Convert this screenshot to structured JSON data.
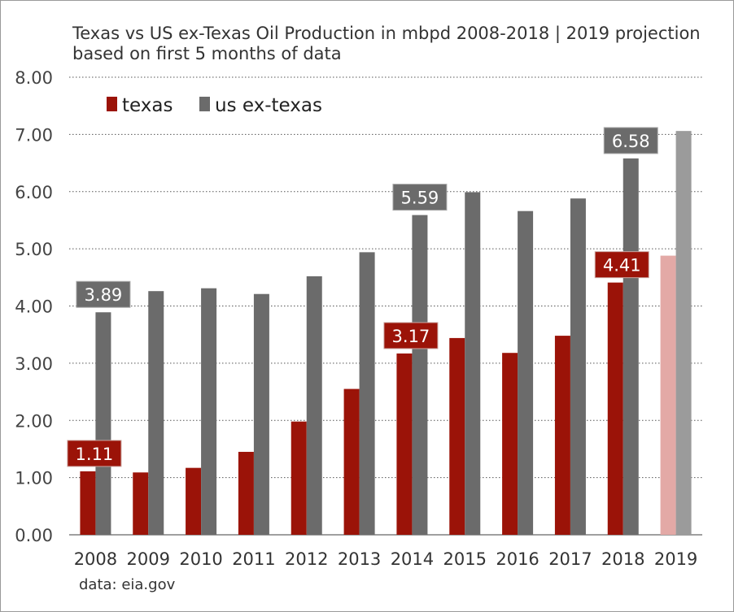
{
  "title": "Texas vs US ex-Texas Oil Production in mbpd 2008-2018 | 2019 projection based on first 5 months of data",
  "source": "data: eia.gov",
  "chart_data": {
    "type": "bar",
    "title": "Texas vs US ex-Texas Oil Production in mbpd 2008-2018 | 2019 projection based on first 5 months of data",
    "xlabel": "",
    "ylabel": "",
    "ylim": [
      0,
      8
    ],
    "yticks": [
      "0.00",
      "1.00",
      "2.00",
      "3.00",
      "4.00",
      "5.00",
      "6.00",
      "7.00",
      "8.00"
    ],
    "grid": "horizontal dotted",
    "legend_position": "top-left",
    "categories": [
      "2008",
      "2009",
      "2010",
      "2011",
      "2012",
      "2013",
      "2014",
      "2015",
      "2016",
      "2017",
      "2018",
      "2019"
    ],
    "projected_category": "2019",
    "series": [
      {
        "name": "texas",
        "color": "#9b1308",
        "projected_color": "#e3a9a6",
        "values": [
          1.11,
          1.09,
          1.17,
          1.45,
          1.98,
          2.55,
          3.17,
          3.44,
          3.18,
          3.48,
          4.41,
          4.88
        ]
      },
      {
        "name": "us ex-texas",
        "color": "#6b6b6b",
        "projected_color": "#9b9b9b",
        "values": [
          3.89,
          4.26,
          4.31,
          4.21,
          4.52,
          4.94,
          5.59,
          5.99,
          5.66,
          5.88,
          6.58,
          7.06
        ]
      }
    ],
    "annotations": [
      {
        "series": "us ex-texas",
        "category": "2008",
        "label": "3.89"
      },
      {
        "series": "us ex-texas",
        "category": "2014",
        "label": "5.59"
      },
      {
        "series": "us ex-texas",
        "category": "2018",
        "label": "6.58"
      },
      {
        "series": "texas",
        "category": "2008",
        "label": "1.11"
      },
      {
        "series": "texas",
        "category": "2014",
        "label": "3.17"
      },
      {
        "series": "texas",
        "category": "2018",
        "label": "4.41"
      }
    ]
  }
}
